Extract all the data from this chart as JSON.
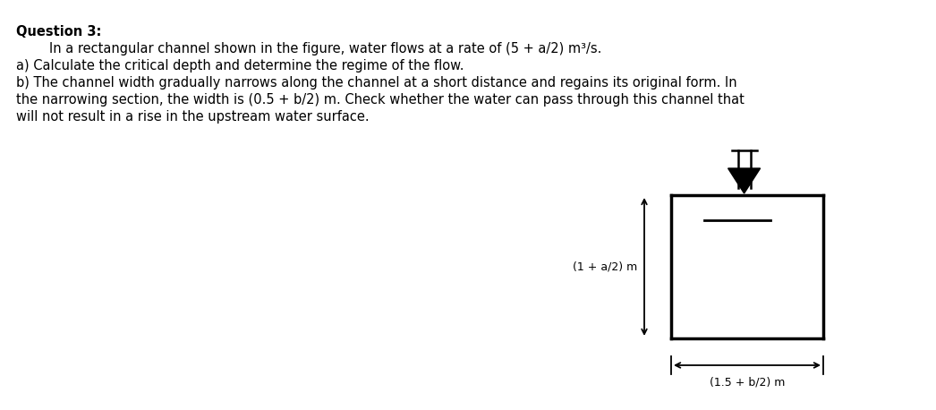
{
  "title": "Question 3:",
  "line1": "        In a rectangular channel shown in the figure, water flows at a rate of (5 + a/2) m³/s.",
  "line2": "a) Calculate the critical depth and determine the regime of the flow.",
  "line3": "b) The channel width gradually narrows along the channel at a short distance and regains its original form. In",
  "line4": "the narrowing section, the width is (0.5 + b/2) m. Check whether the water can pass through this channel that",
  "line5": "will not result in a rise in the upstream water surface.",
  "depth_label": "(1 + a/2) m",
  "width_label": "(1.5 + b/2) m",
  "bg_color": "#ffffff",
  "text_color": "#000000",
  "font_size_text": 10.5,
  "font_size_label": 9.0
}
